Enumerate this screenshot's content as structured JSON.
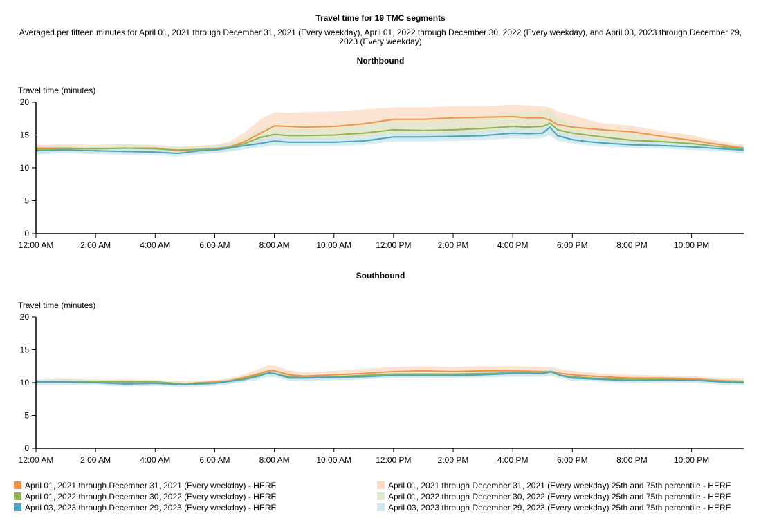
{
  "title": "Travel time for 19 TMC segments",
  "subtitle": "Averaged per fifteen minutes for April 01, 2021 through December 31, 2021 (Every weekday), April 01, 2022 through December 30, 2022 (Every weekday), and April 03, 2023 through December 29, 2023 (Every weekday)",
  "colors": {
    "s2021": "#f4914b",
    "s2022": "#8fb350",
    "s2023": "#4aa3bf",
    "b2021": "#fbd9c3",
    "b2022": "#dfe8c9",
    "b2023": "#cde7ef"
  },
  "legend": [
    {
      "label": "April 01, 2021 through December 31, 2021 (Every weekday) - HERE",
      "color": "#f4914b"
    },
    {
      "label": "April 01, 2022 through December 30, 2022 (Every weekday) - HERE",
      "color": "#8fb350"
    },
    {
      "label": "April 03, 2023 through December 29, 2023 (Every weekday) - HERE",
      "color": "#4aa3bf"
    },
    {
      "label": "April 01, 2021 through December 31, 2021 (Every weekday) 25th and 75th percentile - HERE",
      "color": "#fbd9c3"
    },
    {
      "label": "April 01, 2022 through December 30, 2022 (Every weekday) 25th and 75th percentile - HERE",
      "color": "#dfe8c9"
    },
    {
      "label": "April 03, 2023 through December 29, 2023 (Every weekday) 25th and 75th percentile - HERE",
      "color": "#cde7ef"
    }
  ],
  "chart_data": [
    {
      "type": "line",
      "title": "Northbound",
      "ylabel": "Travel time (minutes)",
      "ylim": [
        0,
        20
      ],
      "yticks": [
        0,
        5,
        10,
        15,
        20
      ],
      "xlim_hours": [
        0,
        23.75
      ],
      "xticks": [
        {
          "hour": 0,
          "label": "12:00 AM"
        },
        {
          "hour": 2,
          "label": "2:00 AM"
        },
        {
          "hour": 4,
          "label": "4:00 AM"
        },
        {
          "hour": 6,
          "label": "6:00 AM"
        },
        {
          "hour": 8,
          "label": "8:00 AM"
        },
        {
          "hour": 10,
          "label": "10:00 AM"
        },
        {
          "hour": 12,
          "label": "12:00 PM"
        },
        {
          "hour": 14,
          "label": "2:00 PM"
        },
        {
          "hour": 16,
          "label": "4:00 PM"
        },
        {
          "hour": 18,
          "label": "6:00 PM"
        },
        {
          "hour": 20,
          "label": "8:00 PM"
        },
        {
          "hour": 22,
          "label": "10:00 PM"
        }
      ],
      "x_hours": [
        0,
        1,
        2,
        3,
        4,
        4.75,
        5.5,
        6,
        6.5,
        7,
        7.5,
        8,
        8.5,
        9,
        10,
        11,
        12,
        13,
        14,
        15,
        16,
        16.5,
        17,
        17.25,
        17.5,
        18,
        18.5,
        19,
        20,
        21,
        22,
        23,
        23.75
      ],
      "series": [
        {
          "name": "April 01, 2021 through December 31, 2021 (Every weekday) - HERE",
          "values": [
            13,
            13,
            12.9,
            13,
            13,
            12.6,
            12.8,
            12.9,
            13.2,
            14,
            15.2,
            16.4,
            16.3,
            16.2,
            16.3,
            16.7,
            17.4,
            17.4,
            17.6,
            17.7,
            17.8,
            17.6,
            17.6,
            17.3,
            16.6,
            16.2,
            16,
            15.8,
            15.5,
            14.8,
            14.2,
            13.5,
            13
          ]
        },
        {
          "name": "April 01, 2022 through December 30, 2022 (Every weekday) - HERE",
          "values": [
            12.8,
            12.9,
            12.9,
            13,
            12.9,
            12.7,
            12.8,
            12.8,
            13.1,
            13.7,
            14.6,
            15.1,
            14.9,
            14.9,
            15,
            15.3,
            15.8,
            15.7,
            15.8,
            16,
            16.3,
            16.2,
            16.3,
            16.8,
            15.8,
            15.3,
            15,
            14.7,
            14.2,
            14,
            13.7,
            13.2,
            12.9
          ]
        },
        {
          "name": "April 03, 2023 through December 29, 2023 (Every weekday) - HERE",
          "values": [
            12.6,
            12.7,
            12.6,
            12.5,
            12.4,
            12.2,
            12.6,
            12.7,
            13,
            13.4,
            13.7,
            14.1,
            13.9,
            13.9,
            13.9,
            14.1,
            14.7,
            14.7,
            14.8,
            14.9,
            15.3,
            15.2,
            15.3,
            16.2,
            14.9,
            14.3,
            14,
            13.8,
            13.5,
            13.4,
            13.2,
            12.9,
            12.7
          ]
        }
      ],
      "bands": [
        {
          "name": "April 01, 2021 through December 31, 2021 (Every weekday) 25th and 75th percentile - HERE",
          "low": [
            12.4,
            12.4,
            12.3,
            12.3,
            12.3,
            12.1,
            12.3,
            12.4,
            12.6,
            13.1,
            13.8,
            14.2,
            14.1,
            14.2,
            14.4,
            14.7,
            15.1,
            15.1,
            15.2,
            15.4,
            15.6,
            15.5,
            15.6,
            15.6,
            15,
            14.6,
            14.4,
            14.2,
            14,
            13.8,
            13.5,
            13,
            12.6
          ],
          "high": [
            13.5,
            13.6,
            13.5,
            13.6,
            13.5,
            13.2,
            13.4,
            13.5,
            14,
            15.4,
            17.3,
            18.5,
            18.4,
            18.5,
            18.6,
            18.9,
            19.2,
            19.2,
            19.4,
            19.4,
            19.6,
            19.5,
            19.4,
            19.2,
            18.6,
            18,
            17.4,
            16.8,
            16.4,
            15.6,
            15,
            14,
            13.5
          ]
        },
        {
          "name": "April 01, 2022 through December 30, 2022 (Every weekday) 25th and 75th percentile - HERE",
          "low": [
            12.3,
            12.4,
            12.3,
            12.4,
            12.3,
            12.1,
            12.3,
            12.3,
            12.5,
            12.9,
            13.4,
            13.6,
            13.6,
            13.6,
            13.7,
            13.9,
            14.3,
            14.3,
            14.4,
            14.6,
            14.8,
            14.8,
            14.8,
            14.9,
            14.4,
            14,
            13.8,
            13.6,
            13.4,
            13.2,
            13,
            12.7,
            12.4
          ],
          "high": [
            13.3,
            13.4,
            13.4,
            13.5,
            13.4,
            13.2,
            13.3,
            13.4,
            13.8,
            14.6,
            15.9,
            16.6,
            16.4,
            16.4,
            16.5,
            16.9,
            17.5,
            17.5,
            17.7,
            18,
            18.4,
            18.5,
            18.7,
            19,
            17.6,
            16.9,
            16.4,
            15.9,
            15.4,
            14.9,
            14.4,
            13.7,
            13.3
          ]
        },
        {
          "name": "April 03, 2023 through December 29, 2023 (Every weekday) 25th and 75th percentile - HERE",
          "low": [
            12.1,
            12.2,
            12.1,
            12,
            11.9,
            11.7,
            12.1,
            12.2,
            12.5,
            12.8,
            13.1,
            13.4,
            13.3,
            13.3,
            13.3,
            13.5,
            14,
            14,
            14.1,
            14.2,
            14.5,
            14.4,
            14.5,
            15,
            14.1,
            13.7,
            13.4,
            13.2,
            13,
            12.9,
            12.7,
            12.5,
            12.2
          ],
          "high": [
            13.1,
            13.2,
            13.1,
            13,
            12.9,
            12.7,
            13.1,
            13.2,
            13.5,
            14,
            14.4,
            14.9,
            14.6,
            14.6,
            14.6,
            14.8,
            15.4,
            15.4,
            15.5,
            15.6,
            16.1,
            16,
            16.1,
            17.3,
            15.6,
            15,
            14.6,
            14.4,
            14.1,
            13.9,
            13.7,
            13.4,
            13.2
          ]
        }
      ]
    },
    {
      "type": "line",
      "title": "Southbound",
      "ylabel": "Travel time (minutes)",
      "ylim": [
        0,
        20
      ],
      "yticks": [
        0,
        5,
        10,
        15,
        20
      ],
      "xlim_hours": [
        0,
        23.75
      ],
      "xticks": [
        {
          "hour": 0,
          "label": "12:00 AM"
        },
        {
          "hour": 2,
          "label": "2:00 AM"
        },
        {
          "hour": 4,
          "label": "4:00 AM"
        },
        {
          "hour": 6,
          "label": "6:00 AM"
        },
        {
          "hour": 8,
          "label": "8:00 AM"
        },
        {
          "hour": 10,
          "label": "10:00 AM"
        },
        {
          "hour": 12,
          "label": "12:00 PM"
        },
        {
          "hour": 14,
          "label": "2:00 PM"
        },
        {
          "hour": 16,
          "label": "4:00 PM"
        },
        {
          "hour": 18,
          "label": "6:00 PM"
        },
        {
          "hour": 20,
          "label": "8:00 PM"
        },
        {
          "hour": 22,
          "label": "10:00 PM"
        }
      ],
      "x_hours": [
        0,
        1,
        2,
        3,
        4,
        5,
        5.5,
        6,
        6.5,
        7,
        7.5,
        7.8,
        8,
        8.5,
        9,
        10,
        11,
        12,
        13,
        14,
        15,
        16,
        17,
        17.3,
        17.6,
        18,
        19,
        20,
        21,
        22,
        23,
        23.75
      ],
      "series": [
        {
          "name": "April 01, 2021 through December 31, 2021 (Every weekday) - HERE",
          "values": [
            10.2,
            10.2,
            10.2,
            10.1,
            10.1,
            9.8,
            10,
            10.1,
            10.3,
            10.8,
            11.4,
            11.8,
            11.8,
            11.2,
            11,
            11.2,
            11.4,
            11.7,
            11.8,
            11.7,
            11.8,
            11.8,
            11.7,
            11.7,
            11.4,
            11.2,
            10.9,
            10.7,
            10.7,
            10.6,
            10.3,
            10.2
          ]
        },
        {
          "name": "April 01, 2022 through December 30, 2022 (Every weekday) - HERE",
          "values": [
            10.1,
            10.2,
            10.1,
            10.1,
            10.1,
            9.8,
            9.9,
            10,
            10.2,
            10.6,
            11.2,
            11.5,
            11.4,
            10.9,
            10.8,
            10.9,
            11.1,
            11.3,
            11.3,
            11.3,
            11.4,
            11.5,
            11.5,
            11.6,
            11.1,
            10.9,
            10.6,
            10.5,
            10.5,
            10.4,
            10.2,
            10.1
          ]
        },
        {
          "name": "April 03, 2023 through December 29, 2023 (Every weekday) - HERE",
          "values": [
            10.1,
            10.1,
            10,
            9.8,
            9.9,
            9.7,
            9.8,
            9.9,
            10.2,
            10.5,
            11,
            11.5,
            11.4,
            10.7,
            10.7,
            10.8,
            10.9,
            11.1,
            11.1,
            11.1,
            11.2,
            11.4,
            11.4,
            11.7,
            11.1,
            10.7,
            10.5,
            10.3,
            10.4,
            10.4,
            10.1,
            10
          ]
        }
      ],
      "bands": [
        {
          "name": "April 01, 2021 through December 31, 2021 (Every weekday) 25th and 75th percentile - HERE",
          "low": [
            9.8,
            9.8,
            9.8,
            9.7,
            9.7,
            9.5,
            9.7,
            9.8,
            9.9,
            10.3,
            10.8,
            11.1,
            11.1,
            10.6,
            10.5,
            10.6,
            10.8,
            11,
            11.1,
            11,
            11.1,
            11.1,
            11.1,
            11.1,
            10.8,
            10.6,
            10.4,
            10.2,
            10.2,
            10.1,
            9.9,
            9.8
          ],
          "high": [
            10.5,
            10.6,
            10.5,
            10.5,
            10.4,
            10.2,
            10.3,
            10.4,
            10.7,
            11.3,
            12.1,
            12.7,
            12.6,
            11.9,
            11.6,
            11.8,
            12.1,
            12.4,
            12.5,
            12.4,
            12.5,
            12.5,
            12.4,
            12.4,
            12.1,
            11.8,
            11.4,
            11.2,
            11.1,
            11,
            10.7,
            10.6
          ]
        },
        {
          "name": "April 01, 2022 through December 30, 2022 (Every weekday) 25th and 75th percentile - HERE",
          "low": [
            9.7,
            9.8,
            9.7,
            9.7,
            9.7,
            9.5,
            9.6,
            9.6,
            9.8,
            10.1,
            10.6,
            10.8,
            10.8,
            10.4,
            10.3,
            10.4,
            10.6,
            10.7,
            10.8,
            10.7,
            10.8,
            10.9,
            10.9,
            11,
            10.6,
            10.4,
            10.2,
            10.1,
            10.1,
            10,
            9.8,
            9.7
          ],
          "high": [
            10.4,
            10.5,
            10.4,
            10.4,
            10.4,
            10.1,
            10.2,
            10.3,
            10.6,
            11,
            11.7,
            12.1,
            12,
            11.4,
            11.2,
            11.3,
            11.5,
            11.8,
            11.8,
            11.8,
            11.9,
            12,
            12,
            12.1,
            11.6,
            11.3,
            11,
            10.9,
            10.9,
            10.8,
            10.6,
            10.4
          ]
        },
        {
          "name": "April 03, 2023 through December 29, 2023 (Every weekday) 25th and 75th percentile - HERE",
          "low": [
            9.7,
            9.7,
            9.6,
            9.4,
            9.5,
            9.3,
            9.4,
            9.5,
            9.8,
            10.1,
            10.5,
            10.9,
            10.9,
            10.3,
            10.3,
            10.4,
            10.5,
            10.7,
            10.7,
            10.7,
            10.8,
            10.9,
            10.9,
            11.2,
            10.7,
            10.3,
            10.1,
            9.9,
            10,
            10,
            9.7,
            9.6
          ],
          "high": [
            10.4,
            10.4,
            10.3,
            10.1,
            10.2,
            10,
            10.1,
            10.2,
            10.5,
            10.9,
            11.5,
            12,
            11.9,
            11.1,
            11.1,
            11.2,
            11.3,
            11.5,
            11.5,
            11.5,
            11.6,
            11.8,
            11.8,
            12.2,
            11.5,
            11.1,
            10.9,
            10.7,
            10.8,
            10.8,
            10.4,
            10.3
          ]
        }
      ]
    }
  ]
}
